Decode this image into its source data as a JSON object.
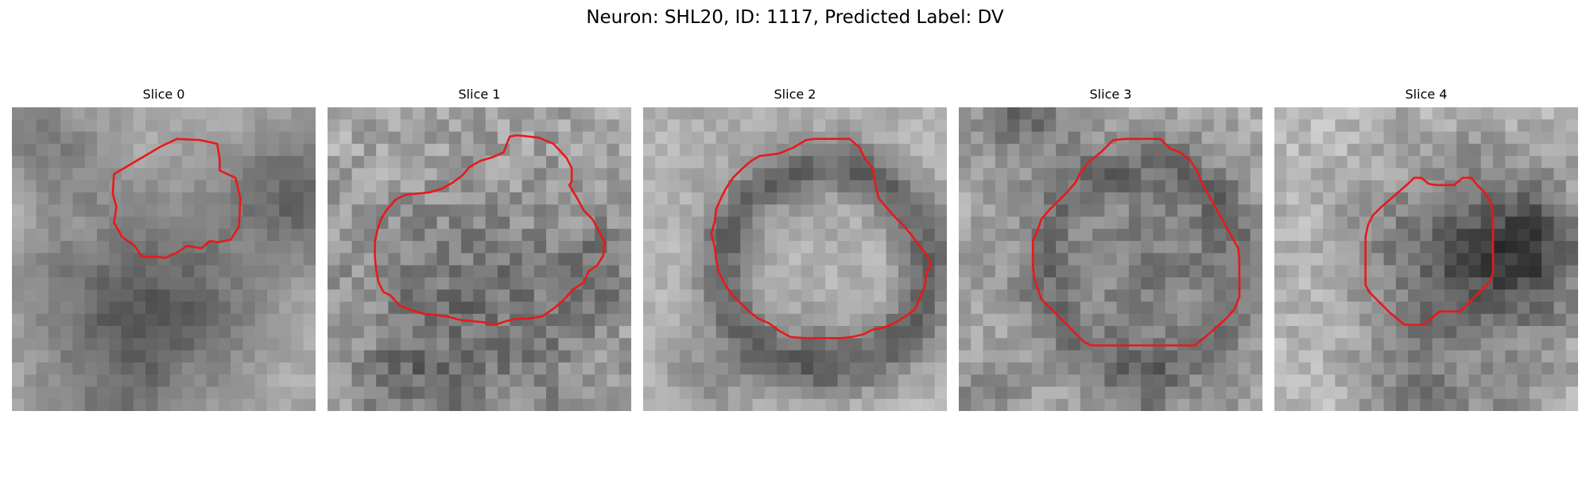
{
  "figure": {
    "title": "Neuron: SHL20, ID: 1117, Predicted Label: DV",
    "contour_color": "#e8191a",
    "slices": [
      {
        "label": "Slice 0",
        "seed": 11,
        "smooth": 0.55,
        "noise": 28,
        "base": 178,
        "blobs": [
          [
            10.5,
            17,
            6.5,
            90
          ],
          [
            23.5,
            7.5,
            4.5,
            70
          ],
          [
            3,
            3,
            3.5,
            45
          ],
          [
            8,
            26,
            3,
            30
          ]
        ],
        "ring": null,
        "contour": [
          [
            12.3,
            3.2
          ],
          [
            13.6,
            2.6
          ],
          [
            15.5,
            2.7
          ],
          [
            16.9,
            3.0
          ],
          [
            17.1,
            4.3
          ],
          [
            17.1,
            5.2
          ],
          [
            18.4,
            5.8
          ],
          [
            18.8,
            7.5
          ],
          [
            18.7,
            9.8
          ],
          [
            18.0,
            10.9
          ],
          [
            17.0,
            11.1
          ],
          [
            16.3,
            11.0
          ],
          [
            15.6,
            11.6
          ],
          [
            14.4,
            11.4
          ],
          [
            13.7,
            11.9
          ],
          [
            12.6,
            12.4
          ],
          [
            11.9,
            12.3
          ],
          [
            10.7,
            12.3
          ],
          [
            10.1,
            11.4
          ],
          [
            9.1,
            10.7
          ],
          [
            8.4,
            9.5
          ],
          [
            8.6,
            8.2
          ],
          [
            8.3,
            7.1
          ],
          [
            8.4,
            5.5
          ]
        ]
      },
      {
        "label": "Slice 1",
        "seed": 23,
        "smooth": 0.3,
        "noise": 42,
        "base": 168,
        "blobs": [
          [
            12.5,
            17.5,
            7.5,
            55
          ],
          [
            22,
            13,
            2.5,
            35
          ],
          [
            6,
            23,
            2.5,
            35
          ]
        ],
        "ring": null,
        "contour": [
          [
            15.0,
            2.4
          ],
          [
            15.6,
            2.3
          ],
          [
            17.4,
            2.5
          ],
          [
            18.6,
            3.0
          ],
          [
            19.7,
            4.2
          ],
          [
            20.1,
            5.0
          ],
          [
            20.1,
            6.1
          ],
          [
            19.9,
            6.4
          ],
          [
            20.5,
            7.4
          ],
          [
            21.1,
            8.5
          ],
          [
            21.8,
            9.2
          ],
          [
            22.3,
            10.1
          ],
          [
            22.8,
            11.1
          ],
          [
            22.7,
            12.2
          ],
          [
            22.2,
            13.0
          ],
          [
            21.5,
            13.5
          ],
          [
            21.1,
            14.4
          ],
          [
            20.2,
            15.0
          ],
          [
            19.4,
            15.9
          ],
          [
            18.7,
            16.5
          ],
          [
            17.7,
            17.2
          ],
          [
            16.5,
            17.4
          ],
          [
            15.6,
            17.4
          ],
          [
            14.7,
            17.6
          ],
          [
            13.8,
            17.9
          ],
          [
            12.9,
            17.7
          ],
          [
            11.9,
            17.6
          ],
          [
            10.9,
            17.5
          ],
          [
            9.8,
            17.2
          ],
          [
            8.9,
            17.1
          ],
          [
            7.9,
            17.0
          ],
          [
            6.9,
            16.7
          ],
          [
            5.9,
            16.3
          ],
          [
            5.2,
            15.5
          ],
          [
            4.6,
            15.2
          ],
          [
            4.2,
            14.4
          ],
          [
            4.0,
            13.4
          ],
          [
            3.9,
            12.3
          ],
          [
            3.9,
            11.1
          ],
          [
            4.1,
            10.1
          ],
          [
            4.4,
            9.2
          ],
          [
            4.9,
            8.4
          ],
          [
            5.6,
            7.6
          ],
          [
            6.4,
            7.2
          ],
          [
            7.4,
            7.1
          ],
          [
            8.4,
            7.0
          ],
          [
            9.4,
            6.7
          ],
          [
            10.3,
            6.2
          ],
          [
            11.1,
            5.6
          ],
          [
            11.7,
            4.9
          ],
          [
            12.6,
            4.4
          ],
          [
            13.6,
            4.1
          ],
          [
            14.5,
            3.7
          ]
        ]
      },
      {
        "label": "Slice 2",
        "seed": 37,
        "smooth": 0.45,
        "noise": 30,
        "base": 176,
        "blobs": [
          [
            14.8,
            18.5,
            1.8,
            25
          ],
          [
            5,
            22,
            2.5,
            30
          ]
        ],
        "ring": [
          15,
          13.2,
          8.3,
          1.6,
          75
        ],
        "contour": [
          [
            12.4,
            3.3
          ],
          [
            13.4,
            2.7
          ],
          [
            14.1,
            2.6
          ],
          [
            15.7,
            2.6
          ],
          [
            17.0,
            2.6
          ],
          [
            17.8,
            3.3
          ],
          [
            18.3,
            4.3
          ],
          [
            18.9,
            5.0
          ],
          [
            19.1,
            6.3
          ],
          [
            19.4,
            7.5
          ],
          [
            20.0,
            8.2
          ],
          [
            20.7,
            9.0
          ],
          [
            21.4,
            9.7
          ],
          [
            22.0,
            10.4
          ],
          [
            22.6,
            11.2
          ],
          [
            23.3,
            12.1
          ],
          [
            23.7,
            13.0
          ],
          [
            23.3,
            13.6
          ],
          [
            23.2,
            14.7
          ],
          [
            22.8,
            15.6
          ],
          [
            22.4,
            16.6
          ],
          [
            21.6,
            17.2
          ],
          [
            20.8,
            17.7
          ],
          [
            19.9,
            18.1
          ],
          [
            18.9,
            18.3
          ],
          [
            18.1,
            18.7
          ],
          [
            17.2,
            18.9
          ],
          [
            16.3,
            19.0
          ],
          [
            15.3,
            19.0
          ],
          [
            14.3,
            19.0
          ],
          [
            13.3,
            19.0
          ],
          [
            12.1,
            18.9
          ],
          [
            11.2,
            18.4
          ],
          [
            10.4,
            17.8
          ],
          [
            9.5,
            17.4
          ],
          [
            8.7,
            16.8
          ],
          [
            8.0,
            16.1
          ],
          [
            7.3,
            15.4
          ],
          [
            6.7,
            14.5
          ],
          [
            6.2,
            13.5
          ],
          [
            6.0,
            12.5
          ],
          [
            5.9,
            11.5
          ],
          [
            5.6,
            10.4
          ],
          [
            5.9,
            9.4
          ],
          [
            6.0,
            8.4
          ],
          [
            6.4,
            7.5
          ],
          [
            6.8,
            6.7
          ],
          [
            7.4,
            5.8
          ],
          [
            8.1,
            5.1
          ],
          [
            8.9,
            4.4
          ],
          [
            9.6,
            4.0
          ],
          [
            10.5,
            3.9
          ],
          [
            11.2,
            3.8
          ]
        ]
      },
      {
        "label": "Slice 3",
        "seed": 52,
        "smooth": 0.35,
        "noise": 36,
        "base": 172,
        "blobs": [
          [
            15,
            13,
            7.5,
            45
          ],
          [
            5.5,
            0.5,
            3,
            60
          ],
          [
            15,
            26,
            3,
            45
          ],
          [
            2,
            25,
            2.5,
            35
          ]
        ],
        "ring": [
          15,
          13,
          8.2,
          1.5,
          35
        ],
        "contour": [
          [
            10.7,
            4.5
          ],
          [
            11.7,
            3.7
          ],
          [
            12.7,
            2.7
          ],
          [
            13.7,
            2.6
          ],
          [
            14.7,
            2.6
          ],
          [
            15.7,
            2.6
          ],
          [
            16.6,
            2.6
          ],
          [
            17.4,
            3.4
          ],
          [
            18.2,
            3.7
          ],
          [
            19.0,
            4.3
          ],
          [
            19.6,
            5.2
          ],
          [
            20.0,
            6.2
          ],
          [
            20.5,
            7.1
          ],
          [
            21.0,
            8.0
          ],
          [
            21.5,
            8.9
          ],
          [
            22.0,
            9.8
          ],
          [
            22.5,
            10.7
          ],
          [
            23.0,
            11.6
          ],
          [
            23.1,
            12.6
          ],
          [
            23.1,
            13.6
          ],
          [
            23.1,
            14.6
          ],
          [
            23.1,
            15.6
          ],
          [
            22.7,
            16.6
          ],
          [
            22.0,
            17.4
          ],
          [
            21.1,
            18.2
          ],
          [
            20.3,
            18.9
          ],
          [
            19.4,
            19.6
          ],
          [
            18.3,
            19.6
          ],
          [
            17.2,
            19.6
          ],
          [
            16.1,
            19.6
          ],
          [
            15.0,
            19.6
          ],
          [
            14.0,
            19.6
          ],
          [
            12.9,
            19.6
          ],
          [
            11.9,
            19.6
          ],
          [
            10.9,
            19.6
          ],
          [
            10.3,
            19.3
          ],
          [
            9.6,
            18.6
          ],
          [
            8.9,
            17.9
          ],
          [
            8.2,
            17.2
          ],
          [
            7.5,
            16.5
          ],
          [
            6.8,
            15.8
          ],
          [
            6.5,
            14.9
          ],
          [
            6.2,
            14.0
          ],
          [
            6.1,
            13.0
          ],
          [
            6.1,
            12.0
          ],
          [
            6.1,
            11.0
          ],
          [
            6.5,
            10.1
          ],
          [
            6.8,
            9.2
          ],
          [
            7.5,
            8.4
          ],
          [
            8.2,
            7.7
          ],
          [
            8.9,
            7.0
          ],
          [
            9.6,
            6.2
          ],
          [
            10.0,
            5.4
          ]
        ]
      },
      {
        "label": "Slice 4",
        "seed": 71,
        "smooth": 0.35,
        "noise": 36,
        "base": 186,
        "blobs": [
          [
            16,
            13,
            6.5,
            95
          ],
          [
            21.5,
            11.5,
            3.2,
            60
          ],
          [
            11,
            24.5,
            3,
            45
          ],
          [
            20,
            26,
            2.5,
            40
          ]
        ],
        "ring": null,
        "contour": [
          [
            10.3,
            6.9
          ],
          [
            11.0,
            6.3
          ],
          [
            11.5,
            5.8
          ],
          [
            12.1,
            5.8
          ],
          [
            12.7,
            6.3
          ],
          [
            13.3,
            6.4
          ],
          [
            14.1,
            6.4
          ],
          [
            14.8,
            6.4
          ],
          [
            15.5,
            5.8
          ],
          [
            16.2,
            5.8
          ],
          [
            16.7,
            6.4
          ],
          [
            17.3,
            7.0
          ],
          [
            17.8,
            7.8
          ],
          [
            18.0,
            8.9
          ],
          [
            18.0,
            10.1
          ],
          [
            18.0,
            11.3
          ],
          [
            18.0,
            12.5
          ],
          [
            18.0,
            13.6
          ],
          [
            17.7,
            14.4
          ],
          [
            17.1,
            15.0
          ],
          [
            16.5,
            15.6
          ],
          [
            15.9,
            16.2
          ],
          [
            15.3,
            16.8
          ],
          [
            14.4,
            16.8
          ],
          [
            13.6,
            16.8
          ],
          [
            13.0,
            17.3
          ],
          [
            12.3,
            17.9
          ],
          [
            11.5,
            17.9
          ],
          [
            10.7,
            17.9
          ],
          [
            10.1,
            17.4
          ],
          [
            9.5,
            16.9
          ],
          [
            8.9,
            16.3
          ],
          [
            8.3,
            15.7
          ],
          [
            7.8,
            15.2
          ],
          [
            7.5,
            14.6
          ],
          [
            7.5,
            13.8
          ],
          [
            7.5,
            12.8
          ],
          [
            7.5,
            11.7
          ],
          [
            7.5,
            10.7
          ],
          [
            7.7,
            9.7
          ],
          [
            8.1,
            8.9
          ],
          [
            8.8,
            8.2
          ],
          [
            9.5,
            7.6
          ]
        ]
      }
    ]
  }
}
